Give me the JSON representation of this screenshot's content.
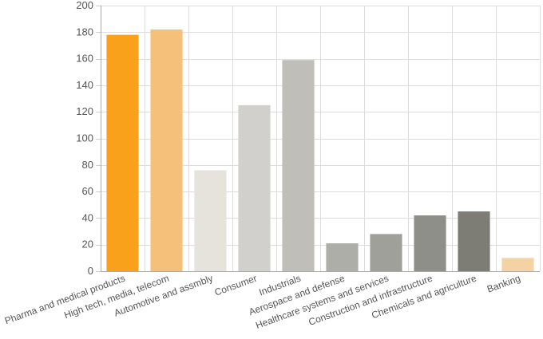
{
  "chart_data": {
    "type": "bar",
    "title": "",
    "xlabel": "",
    "ylabel": "",
    "ylim": [
      0,
      200
    ],
    "y_ticks": [
      "0",
      "20",
      "40",
      "60",
      "80",
      "100",
      "120",
      "140",
      "160",
      "180",
      "200"
    ],
    "grid": true,
    "legend": "none",
    "categories": [
      "Pharma and medical products",
      "High tech, media, telecom",
      "Automotive and assmbly",
      "Consumer",
      "Industrials",
      "Aerospace and defense",
      "Healthcare systems and services",
      "Construction and infrastructure",
      "Chemicals and agriculture",
      "Banking"
    ],
    "values": [
      178,
      182,
      76,
      125,
      159,
      21,
      28,
      42,
      45,
      10
    ],
    "colors": [
      "#f9a11b",
      "#f5c07a",
      "#e6e2dc",
      "#d2d0cc",
      "#c0beb9",
      "#aeaea9",
      "#a0a09b",
      "#8f8f89",
      "#7d7d76",
      "#f3d2a3"
    ]
  }
}
